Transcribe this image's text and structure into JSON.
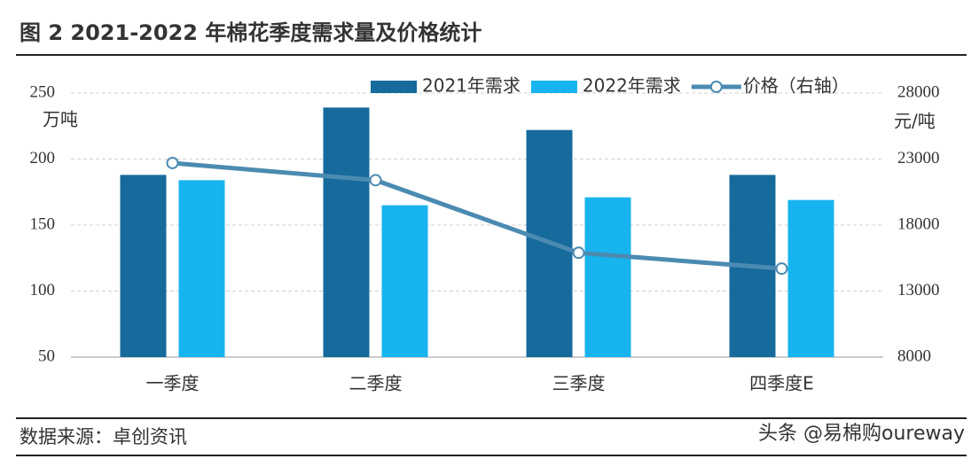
{
  "chart_data": {
    "type": "bar",
    "title": "图 2 2021-2022 年棉花季度需求量及价格统计",
    "y_unit": "万吨",
    "y2_unit": "元/吨",
    "categories": [
      "一季度",
      "二季度",
      "三季度",
      "四季度E"
    ],
    "series": [
      {
        "name": "2021年需求",
        "type": "bar",
        "color": "#166a9c",
        "values": [
          188,
          239,
          222,
          188
        ]
      },
      {
        "name": "2022年需求",
        "type": "bar",
        "color": "#17b4ef",
        "values": [
          184,
          165,
          171,
          169
        ]
      },
      {
        "name": "价格（右轴）",
        "type": "line",
        "axis": "y2",
        "color": "#4b8bb2",
        "values": [
          22700,
          21400,
          15900,
          14700
        ]
      }
    ],
    "ylim": [
      50,
      250
    ],
    "yticks": [
      50,
      100,
      150,
      200,
      250
    ],
    "y2lim": [
      8000,
      28000
    ],
    "y2ticks": [
      8000,
      13000,
      18000,
      23000,
      28000
    ],
    "grid": true
  },
  "source": "数据来源：卓创资讯",
  "watermark": "头条 @易棉购oureway"
}
